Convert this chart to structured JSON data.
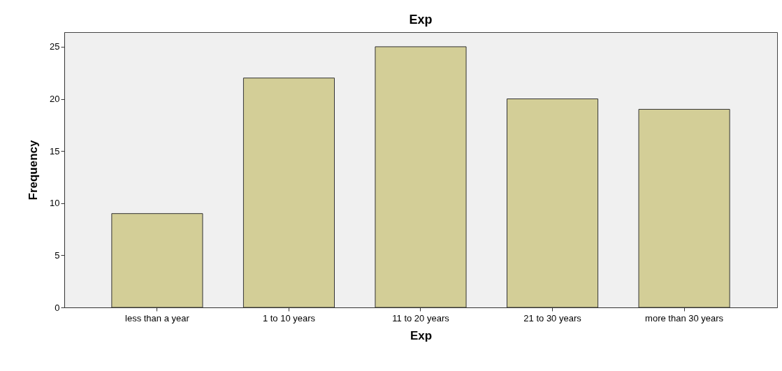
{
  "chart_data": {
    "type": "bar",
    "title": "Exp",
    "xlabel": "Exp",
    "ylabel": "Frequency",
    "categories": [
      "less than a year",
      "1 to 10 years",
      "11 to 20 years",
      "21 to 30 years",
      "more than 30 years"
    ],
    "values": [
      9,
      22,
      25,
      20,
      19
    ],
    "color": "#d3ce97",
    "ylim": [
      0,
      26.4
    ],
    "yticks": [
      0,
      5,
      10,
      15,
      20,
      25
    ],
    "grid": false
  }
}
